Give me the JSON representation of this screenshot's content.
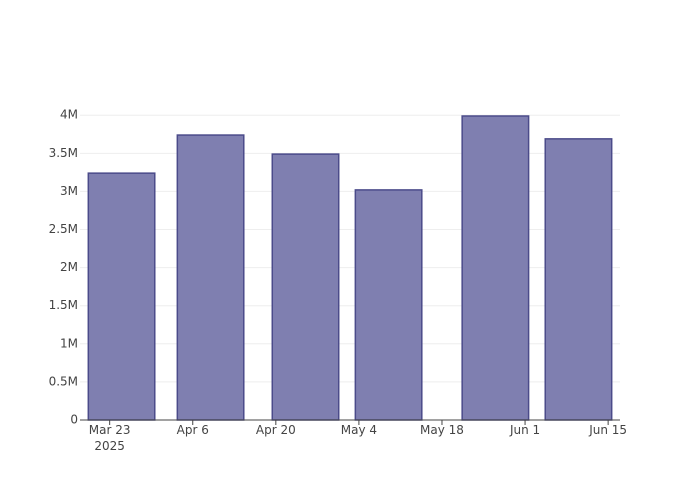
{
  "chart_data": {
    "type": "bar",
    "x": [
      "2025-03-25",
      "2025-04-09",
      "2025-04-25",
      "2025-05-09",
      "2025-05-27",
      "2025-06-10"
    ],
    "values": [
      3240000,
      3740000,
      3490000,
      3020000,
      3990000,
      3690000
    ],
    "color": "#7f7fb0",
    "edge_color": "#4b4b8a",
    "bar_width_days": 11.2,
    "xlim": [
      "2025-03-18",
      "2025-06-17"
    ],
    "xticks": [
      {
        "value": "2025-03-23",
        "label": "Mar 23\n2025"
      },
      {
        "value": "2025-04-06",
        "label": "Apr 6"
      },
      {
        "value": "2025-04-20",
        "label": "Apr 20"
      },
      {
        "value": "2025-05-04",
        "label": "May 4"
      },
      {
        "value": "2025-05-18",
        "label": "May 18"
      },
      {
        "value": "2025-06-01",
        "label": "Jun 1"
      },
      {
        "value": "2025-06-15",
        "label": "Jun 15"
      }
    ],
    "ylim": [
      0,
      4200000
    ],
    "yticks": [
      0,
      {
        "value": 500000,
        "label": "0.5M"
      },
      {
        "value": 1000000,
        "label": "1M"
      },
      {
        "value": 1500000,
        "label": "1.5M"
      },
      {
        "value": 2000000,
        "label": "2M"
      },
      {
        "value": 2500000,
        "label": "2.5M"
      },
      {
        "value": 3000000,
        "label": "3M"
      },
      {
        "value": 3500000,
        "label": "3.5M"
      },
      {
        "value": 4000000,
        "label": "4M"
      }
    ],
    "grid": true
  }
}
